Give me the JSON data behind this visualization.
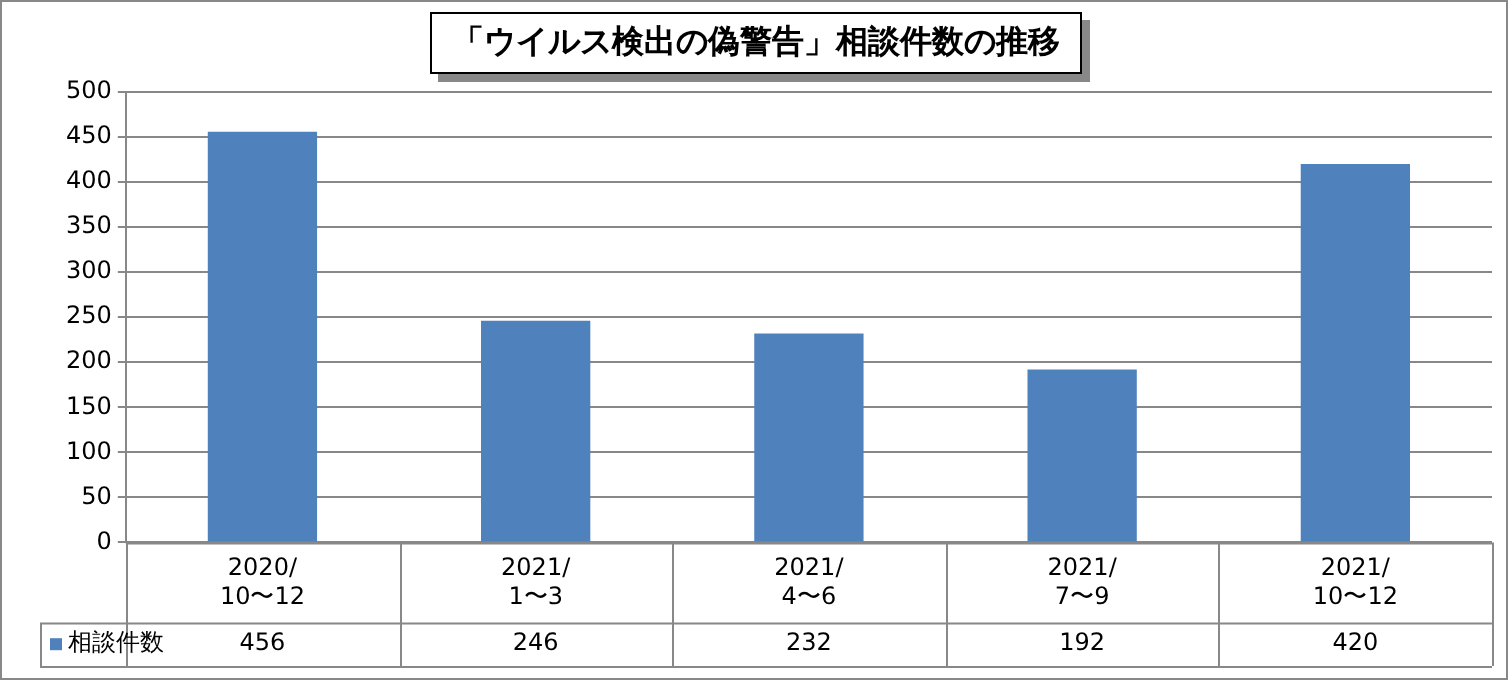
{
  "chart_data": {
    "type": "bar",
    "title": "「ウイルス検出の偽警告」相談件数の推移",
    "categories": [
      "2020/\n10〜12",
      "2021/\n1〜3",
      "2021/\n4〜6",
      "2021/\n7〜9",
      "2021/\n10〜12"
    ],
    "series": [
      {
        "name": "相談件数",
        "color": "#4f81bd",
        "values": [
          456,
          246,
          232,
          192,
          420
        ]
      }
    ],
    "ylim": [
      0,
      500
    ],
    "yticks": [
      0,
      50,
      100,
      150,
      200,
      250,
      300,
      350,
      400,
      450,
      500
    ],
    "grid": "y",
    "legend": "bottom",
    "data_labels": true
  }
}
